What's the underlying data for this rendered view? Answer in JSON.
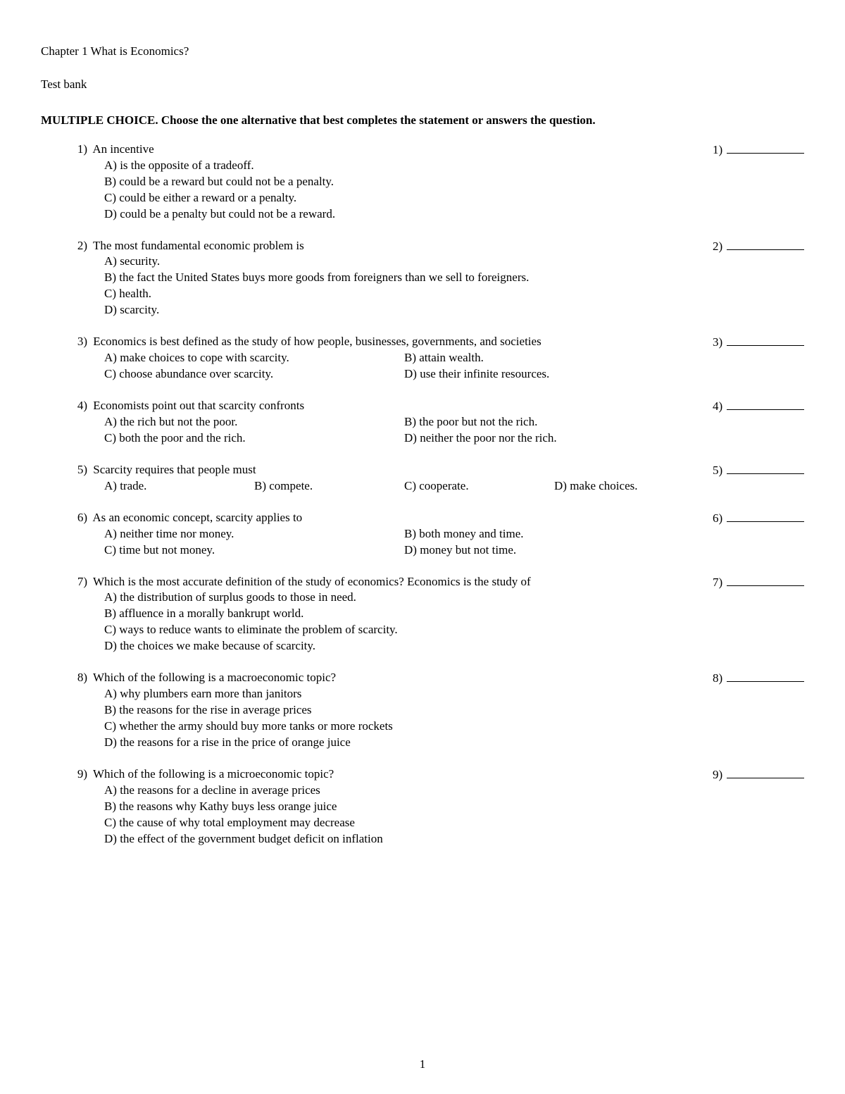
{
  "chapter_title": "Chapter 1 What is Economics?",
  "subtitle": "Test bank",
  "instructions": "MULTIPLE CHOICE.  Choose the one alternative that best completes the statement or answers the question.",
  "page_number": "1",
  "questions": [
    {
      "num": "1)",
      "stem": "An incentive",
      "layout": "stack",
      "options": [
        "A) is the opposite of a tradeoff.",
        "B) could be a reward but could not be a penalty.",
        "C) could be either a reward or a penalty.",
        "D) could be a penalty but could not be a reward."
      ],
      "ans_num": "1)"
    },
    {
      "num": "2)",
      "stem": "The most fundamental economic problem is",
      "layout": "stack",
      "options": [
        "A) security.",
        "B) the fact the United States buys more goods from foreigners than we sell to foreigners.",
        "C) health.",
        "D) scarcity."
      ],
      "ans_num": "2)"
    },
    {
      "num": "3)",
      "stem": "Economics is best defined as the study of how people, businesses, governments, and societies",
      "layout": "two-col",
      "options": [
        "A) make choices to cope with scarcity.",
        "B) attain wealth.",
        "C) choose abundance over scarcity.",
        "D) use their infinite resources."
      ],
      "ans_num": "3)"
    },
    {
      "num": "4)",
      "stem": "Economists point out that scarcity confronts",
      "layout": "two-col",
      "options": [
        "A) the rich but not the poor.",
        "B) the poor but not the rich.",
        "C) both the poor and the rich.",
        "D) neither the poor nor the rich."
      ],
      "ans_num": "4)"
    },
    {
      "num": "5)",
      "stem": "Scarcity requires that people must",
      "layout": "four-col",
      "options": [
        "A) trade.",
        "B) compete.",
        "C) cooperate.",
        "D) make choices."
      ],
      "ans_num": "5)"
    },
    {
      "num": "6)",
      "stem": "As an economic concept, scarcity applies to",
      "layout": "two-col",
      "options": [
        "A) neither time nor money.",
        "B) both money and time.",
        "C) time but not money.",
        "D) money but not time."
      ],
      "ans_num": "6)"
    },
    {
      "num": "7)",
      "stem": "Which is the most accurate definition of the study of economics? Economics is the study of",
      "layout": "stack",
      "options": [
        "A) the distribution of surplus goods to those in need.",
        "B) affluence in a morally bankrupt world.",
        "C) ways to reduce wants to eliminate the problem of scarcity.",
        "D) the choices we make because of scarcity."
      ],
      "ans_num": "7)"
    },
    {
      "num": "8)",
      "stem": "Which of the following is a macroeconomic topic?",
      "layout": "stack",
      "options": [
        "A) why plumbers earn more than janitors",
        "B) the reasons for the rise in average prices",
        "C) whether the army should buy more tanks or more rockets",
        "D) the reasons for a rise in the price of orange juice"
      ],
      "ans_num": "8)"
    },
    {
      "num": "9)",
      "stem": "Which of the following is a microeconomic topic?",
      "layout": "stack",
      "options": [
        "A) the reasons for a decline in average prices",
        "B) the reasons why Kathy buys less orange juice",
        "C) the cause of why total employment may decrease",
        "D) the effect of the government budget deficit on inflation"
      ],
      "ans_num": "9)"
    }
  ]
}
